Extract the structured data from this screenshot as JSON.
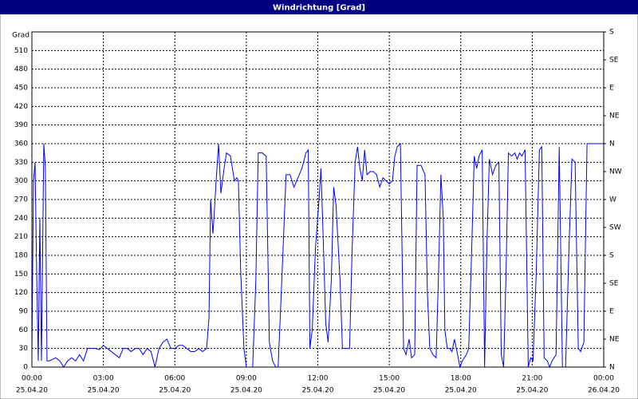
{
  "chart_data": {
    "type": "line",
    "title": "Windrichtung [Grad]",
    "y_label": "Grad",
    "ylim": [
      0,
      540
    ],
    "yticks": [
      0,
      30,
      60,
      90,
      120,
      150,
      180,
      210,
      240,
      270,
      300,
      330,
      360,
      390,
      420,
      450,
      480,
      510
    ],
    "y2lim": [
      0,
      540
    ],
    "y2ticks": [
      {
        "value": 0,
        "label": "N"
      },
      {
        "value": 45,
        "label": "NE"
      },
      {
        "value": 90,
        "label": "E"
      },
      {
        "value": 135,
        "label": "SE"
      },
      {
        "value": 180,
        "label": "S"
      },
      {
        "value": 225,
        "label": "SW"
      },
      {
        "value": 270,
        "label": "W"
      },
      {
        "value": 315,
        "label": "NW"
      },
      {
        "value": 360,
        "label": "N"
      },
      {
        "value": 405,
        "label": "NE"
      },
      {
        "value": 450,
        "label": "E"
      },
      {
        "value": 495,
        "label": "SE"
      },
      {
        "value": 540,
        "label": "S"
      }
    ],
    "xlim": [
      0,
      1440
    ],
    "xticks": [
      {
        "value": 0,
        "label": "00:00",
        "date": "25.04.20"
      },
      {
        "value": 180,
        "label": "03:00",
        "date": "25.04.20"
      },
      {
        "value": 360,
        "label": "06:00",
        "date": "25.04.20"
      },
      {
        "value": 540,
        "label": "09:00",
        "date": "25.04.20"
      },
      {
        "value": 720,
        "label": "12:00",
        "date": "25.04.20"
      },
      {
        "value": 900,
        "label": "15:00",
        "date": "25.04.20"
      },
      {
        "value": 1080,
        "label": "18:00",
        "date": "25.04.20"
      },
      {
        "value": 1260,
        "label": "21:00",
        "date": "25.04.20"
      },
      {
        "value": 1440,
        "label": "00:00",
        "date": "26.04.20"
      }
    ],
    "grid": true,
    "series": [
      {
        "color": "#0000ff",
        "x": [
          0,
          4,
          8,
          12,
          16,
          20,
          24,
          30,
          34,
          38,
          44,
          60,
          70,
          80,
          90,
          100,
          110,
          120,
          130,
          140,
          150,
          160,
          170,
          180,
          190,
          200,
          220,
          230,
          240,
          250,
          260,
          270,
          280,
          290,
          300,
          310,
          320,
          330,
          340,
          350,
          360,
          370,
          380,
          390,
          400,
          410,
          420,
          430,
          440,
          446,
          450,
          456,
          464,
          470,
          476,
          484,
          490,
          500,
          510,
          516,
          520,
          526,
          534,
          540,
          546,
          556,
          564,
          570,
          580,
          590,
          598,
          606,
          614,
          620,
          630,
          640,
          650,
          660,
          670,
          680,
          690,
          696,
          700,
          706,
          714,
          722,
          728,
          734,
          740,
          746,
          754,
          760,
          766,
          776,
          782,
          790,
          800,
          806,
          814,
          820,
          826,
          832,
          838,
          844,
          852,
          860,
          868,
          876,
          884,
          892,
          900,
          908,
          914,
          920,
          928,
          936,
          942,
          950,
          956,
          964,
          970,
          980,
          990,
          996,
          1002,
          1010,
          1018,
          1024,
          1030,
          1036,
          1040,
          1046,
          1052,
          1058,
          1064,
          1072,
          1078,
          1084,
          1094,
          1100,
          1108,
          1114,
          1120,
          1126,
          1134,
          1140,
          1146,
          1152,
          1160,
          1168,
          1176,
          1182,
          1188,
          1194,
          1200,
          1208,
          1216,
          1222,
          1228,
          1234,
          1242,
          1250,
          1256,
          1262,
          1270,
          1278,
          1284,
          1290,
          1298,
          1304,
          1310,
          1320,
          1328,
          1336,
          1344,
          1352,
          1360,
          1368,
          1376,
          1382,
          1390,
          1398,
          1410,
          1420,
          1440
        ],
        "values": [
          20,
          300,
          330,
          150,
          10,
          240,
          10,
          360,
          320,
          10,
          10,
          15,
          10,
          0,
          10,
          15,
          10,
          20,
          10,
          30,
          30,
          30,
          28,
          35,
          30,
          25,
          15,
          30,
          30,
          25,
          30,
          30,
          20,
          30,
          25,
          0,
          30,
          40,
          45,
          30,
          30,
          35,
          35,
          30,
          25,
          25,
          30,
          25,
          30,
          80,
          270,
          215,
          300,
          360,
          280,
          320,
          345,
          340,
          300,
          305,
          300,
          150,
          30,
          0,
          0,
          0,
          140,
          345,
          345,
          340,
          40,
          10,
          0,
          0,
          150,
          310,
          310,
          290,
          305,
          320,
          345,
          350,
          30,
          60,
          190,
          260,
          320,
          200,
          70,
          40,
          140,
          290,
          260,
          140,
          30,
          30,
          30,
          180,
          330,
          355,
          320,
          300,
          350,
          310,
          315,
          315,
          310,
          290,
          305,
          300,
          295,
          300,
          340,
          355,
          360,
          30,
          20,
          45,
          15,
          20,
          325,
          325,
          310,
          120,
          30,
          20,
          15,
          150,
          310,
          240,
          60,
          30,
          30,
          25,
          45,
          20,
          0,
          10,
          20,
          30,
          200,
          340,
          320,
          340,
          350,
          0,
          200,
          335,
          310,
          325,
          330,
          20,
          0,
          150,
          345,
          340,
          345,
          335,
          345,
          340,
          350,
          0,
          15,
          10,
          150,
          350,
          355,
          15,
          10,
          0,
          10,
          20,
          355,
          0,
          0,
          180,
          335,
          330,
          30,
          25,
          40,
          360,
          360,
          360,
          360
        ]
      }
    ]
  }
}
